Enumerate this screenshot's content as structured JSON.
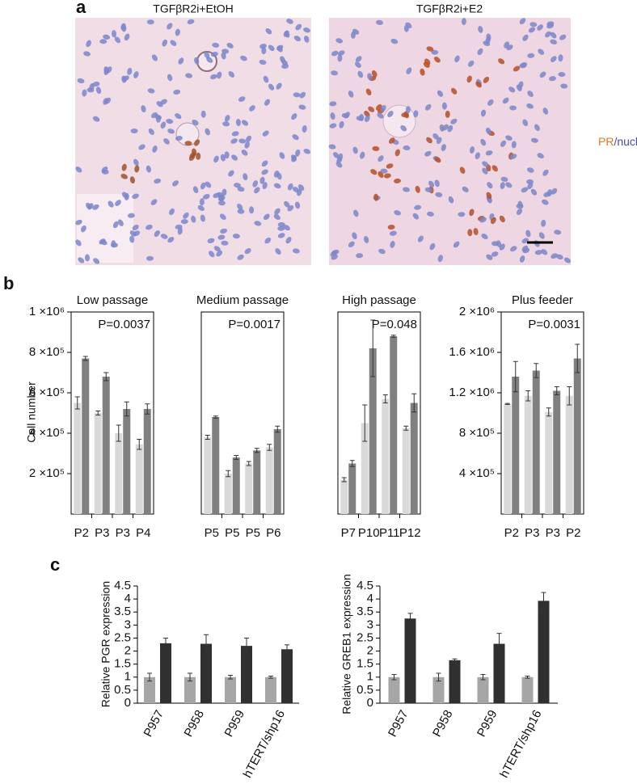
{
  "panel_labels": [
    "a",
    "b",
    "c"
  ],
  "panel_a": {
    "titles": [
      "TGFβR2i+EtOH",
      "TGFβR2i+E2"
    ],
    "stain_legend": [
      "PR",
      "/nuclei"
    ]
  },
  "chart_data": [
    {
      "type": "bar",
      "title": "Low passage",
      "annotation": "P=0.0037",
      "ylabel": "Cell number",
      "categories": [
        "P2",
        "P3",
        "P3",
        "P4"
      ],
      "ylim": [
        0,
        1000000
      ],
      "yticks": [
        {
          "value": 200000,
          "label": "2 ×10⁵"
        },
        {
          "value": 400000,
          "label": "4 ×10⁵"
        },
        {
          "value": 600000,
          "label": "6 ×10⁵"
        },
        {
          "value": 800000,
          "label": "8 ×10⁵"
        },
        {
          "value": 1000000,
          "label": "1 ×10⁶"
        }
      ],
      "series": [
        {
          "color": "#d9d9d9",
          "values": [
            550000,
            500000,
            400000,
            345000
          ],
          "errors": [
            30000,
            10000,
            40000,
            25000
          ]
        },
        {
          "color": "#808080",
          "values": [
            770000,
            680000,
            520000,
            520000
          ],
          "errors": [
            10000,
            20000,
            35000,
            25000
          ]
        }
      ]
    },
    {
      "type": "bar",
      "title": "Medium passage",
      "annotation": "P=0.0017",
      "categories": [
        "P5",
        "P5",
        "P5",
        "P6"
      ],
      "ylim": [
        0,
        1000000
      ],
      "series": [
        {
          "color": "#d9d9d9",
          "values": [
            380000,
            200000,
            250000,
            330000
          ],
          "errors": [
            10000,
            15000,
            10000,
            15000
          ]
        },
        {
          "color": "#808080",
          "values": [
            480000,
            280000,
            315000,
            420000
          ],
          "errors": [
            5000,
            10000,
            10000,
            15000
          ]
        }
      ]
    },
    {
      "type": "bar",
      "title": "High passage",
      "annotation": "P=0.048",
      "categories": [
        "P7",
        "P10",
        "P11",
        "P12"
      ],
      "ylim": [
        0,
        1000000
      ],
      "series": [
        {
          "color": "#d9d9d9",
          "values": [
            170000,
            450000,
            570000,
            425000
          ],
          "errors": [
            10000,
            90000,
            20000,
            10000
          ]
        },
        {
          "color": "#808080",
          "values": [
            250000,
            820000,
            880000,
            550000
          ],
          "errors": [
            15000,
            140000,
            5000,
            45000
          ]
        }
      ]
    },
    {
      "type": "bar",
      "title": "Plus feeder",
      "annotation": "P=0.0031",
      "categories": [
        "P2",
        "P3",
        "P3",
        "P2"
      ],
      "ylim": [
        0,
        2000000
      ],
      "yticks": [
        {
          "value": 400000,
          "label": "4 ×10⁵"
        },
        {
          "value": 800000,
          "label": "8 ×10⁵"
        },
        {
          "value": 1200000,
          "label": "1.2 ×10⁶"
        },
        {
          "value": 1600000,
          "label": "1.6 ×10⁶"
        },
        {
          "value": 2000000,
          "label": "2 ×10⁶"
        }
      ],
      "series": [
        {
          "color": "#d9d9d9",
          "values": [
            1090000,
            1170000,
            1010000,
            1170000
          ],
          "errors": [
            5000,
            50000,
            40000,
            90000
          ]
        },
        {
          "color": "#808080",
          "values": [
            1360000,
            1420000,
            1220000,
            1540000
          ],
          "errors": [
            150000,
            70000,
            40000,
            140000
          ]
        }
      ]
    },
    {
      "type": "bar",
      "ylabel": "Relative PGR expression",
      "categories": [
        "P957",
        "P958",
        "P959",
        "hTERT/shp16"
      ],
      "ylim": [
        0,
        4.5
      ],
      "yticks": [
        0,
        0.5,
        1,
        1.5,
        2,
        2.5,
        3,
        3.5,
        4,
        4.5
      ],
      "series": [
        {
          "color": "#a6a6a6",
          "values": [
            1,
            1,
            1,
            1
          ],
          "errors": [
            0.15,
            0.15,
            0.07,
            0.04
          ]
        },
        {
          "color": "#303030",
          "values": [
            2.3,
            2.28,
            2.2,
            2.07
          ],
          "errors": [
            0.2,
            0.35,
            0.3,
            0.17
          ]
        }
      ]
    },
    {
      "type": "bar",
      "ylabel": "Relative GREB1 expression",
      "categories": [
        "P957",
        "P958",
        "P959",
        "hTERT/shp16"
      ],
      "ylim": [
        0,
        4.5
      ],
      "yticks": [
        0,
        0.5,
        1,
        1.5,
        2,
        2.5,
        3,
        3.5,
        4,
        4.5
      ],
      "series": [
        {
          "color": "#a6a6a6",
          "values": [
            1,
            1,
            1,
            1
          ],
          "errors": [
            0.1,
            0.15,
            0.1,
            0.04
          ]
        },
        {
          "color": "#303030",
          "values": [
            3.25,
            1.65,
            2.28,
            3.93
          ],
          "errors": [
            0.2,
            0.05,
            0.4,
            0.32
          ]
        }
      ]
    }
  ]
}
